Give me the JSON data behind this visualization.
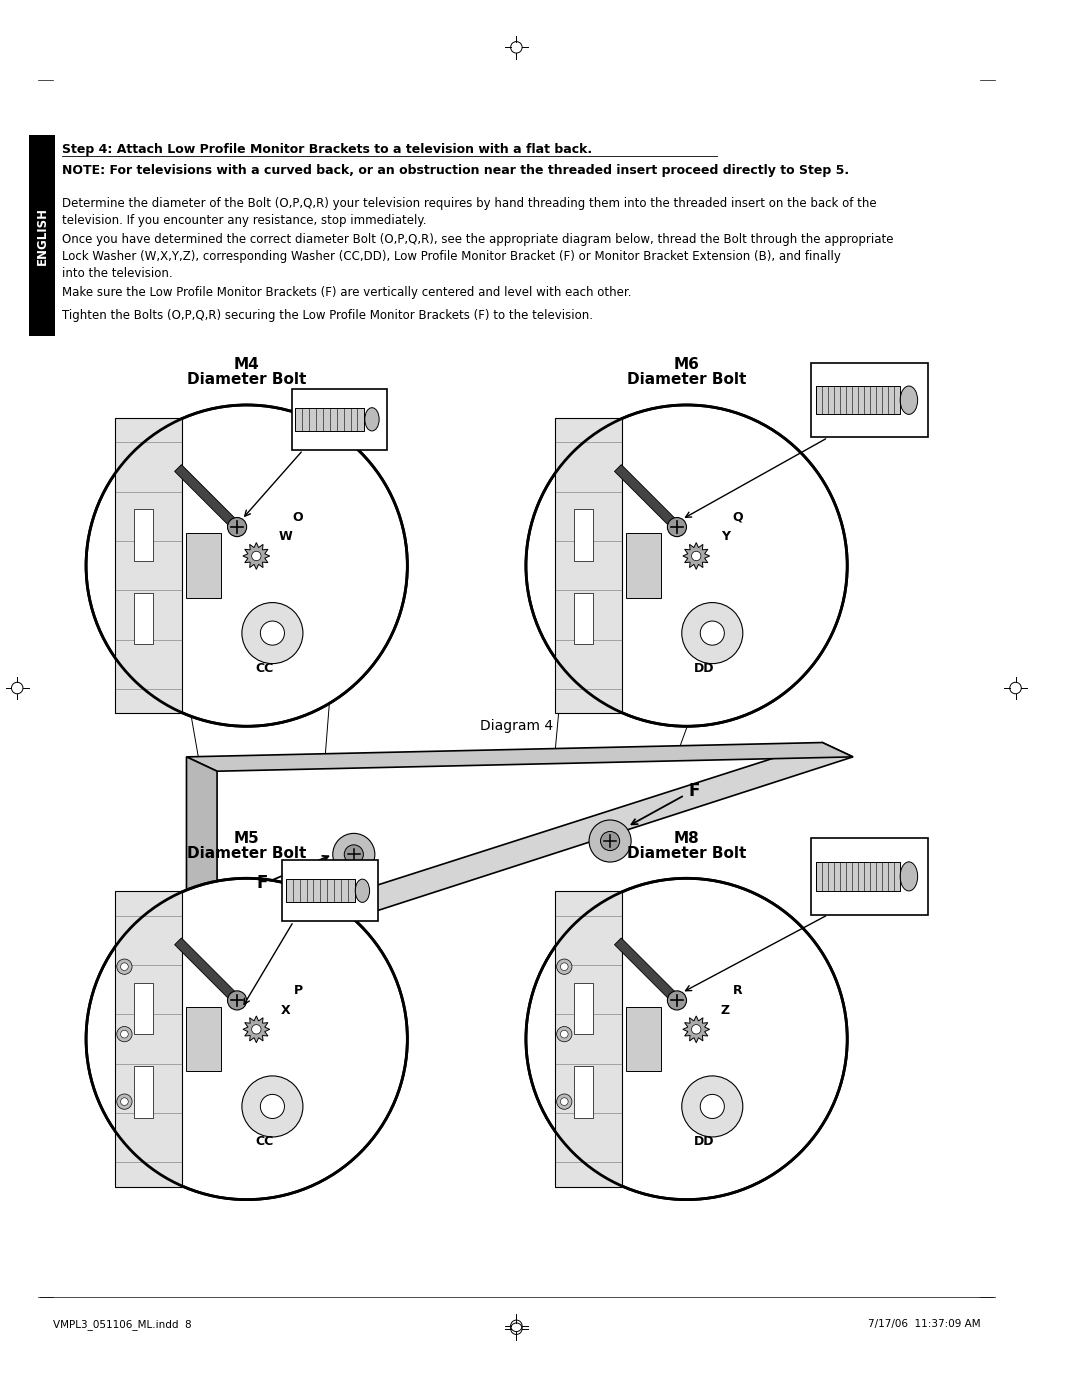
{
  "bg_color": "#ffffff",
  "title_step": "Step 4: Attach Low Profile Monitor Brackets to a television with a flat back.",
  "note_text": "NOTE: For televisions with a curved back, or an obstruction near the threaded insert proceed directly to Step 5.",
  "para1": "Determine the diameter of the Bolt (O,P,Q,R) your television requires by hand threading them into the threaded insert on the back of the\ntelevision. If you encounter any resistance, stop immediately.",
  "para2": "Once you have determined the correct diameter Bolt (O,P,Q,R), see the appropriate diagram below, thread the Bolt through the appropriate\nLock Washer (W,X,Y,Z), corresponding Washer (CC,DD), Low Profile Monitor Bracket (F) or Monitor Bracket Extension (B), and finally\ninto the television.",
  "para3": "Make sure the Low Profile Monitor Brackets (F) are vertically centered and level with each other.",
  "para4": "Tighten the Bolts (O,P,Q,R) securing the Low Profile Monitor Brackets (F) to the television.",
  "diagram_label": "Diagram 4",
  "footer_left": "VMPL3_051106_ML.indd  8",
  "footer_right": "7/17/06  11:37:09 AM",
  "english_label": "ENGLISH"
}
